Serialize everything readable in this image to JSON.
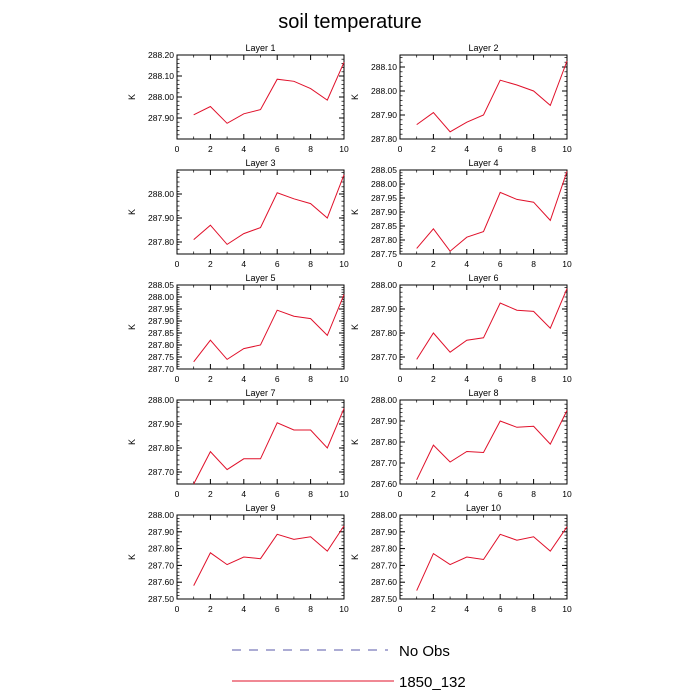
{
  "title": "soil temperature",
  "ylabel": "K",
  "xticks": [
    0,
    2,
    4,
    6,
    8,
    10
  ],
  "xlim": [
    0,
    10
  ],
  "legend": {
    "placement": "bottom-center",
    "items": [
      {
        "label": "No Obs",
        "style": "dashed",
        "color": "#5a5aa8"
      },
      {
        "label": "1850_132",
        "style": "solid",
        "color": "#e0102a"
      }
    ]
  },
  "line_color": "#e0102a",
  "chart_data": [
    {
      "type": "line",
      "title": "Layer 1",
      "xlabel": "",
      "ylabel": "K",
      "ylim": [
        287.8,
        288.2
      ],
      "yticks": [
        "287.90",
        "288.00",
        "288.10",
        "288.20"
      ],
      "series": [
        {
          "name": "1850_132",
          "x": [
            1,
            2,
            3,
            4,
            5,
            6,
            7,
            8,
            9,
            10
          ],
          "values": [
            287.915,
            287.955,
            287.875,
            287.92,
            287.94,
            288.085,
            288.075,
            288.04,
            287.985,
            288.165
          ]
        }
      ]
    },
    {
      "type": "line",
      "title": "Layer 2",
      "xlabel": "",
      "ylabel": "K",
      "ylim": [
        287.8,
        288.15
      ],
      "yticks": [
        "287.80",
        "287.90",
        "288.00",
        "288.10"
      ],
      "series": [
        {
          "name": "1850_132",
          "x": [
            1,
            2,
            3,
            4,
            5,
            6,
            7,
            8,
            9,
            10
          ],
          "values": [
            287.86,
            287.91,
            287.83,
            287.87,
            287.9,
            288.045,
            288.025,
            288.0,
            287.94,
            288.125
          ]
        }
      ]
    },
    {
      "type": "line",
      "title": "Layer 3",
      "xlabel": "",
      "ylabel": "K",
      "ylim": [
        287.75,
        288.1
      ],
      "yticks": [
        "287.80",
        "287.90",
        "288.00"
      ],
      "series": [
        {
          "name": "1850_132",
          "x": [
            1,
            2,
            3,
            4,
            5,
            6,
            7,
            8,
            9,
            10
          ],
          "values": [
            287.81,
            287.87,
            287.79,
            287.835,
            287.86,
            288.005,
            287.98,
            287.96,
            287.9,
            288.08
          ]
        }
      ]
    },
    {
      "type": "line",
      "title": "Layer 4",
      "xlabel": "",
      "ylabel": "K",
      "ylim": [
        287.75,
        288.05
      ],
      "yticks": [
        "287.75",
        "287.80",
        "287.85",
        "287.90",
        "287.95",
        "288.00",
        "288.05"
      ],
      "series": [
        {
          "name": "1850_132",
          "x": [
            1,
            2,
            3,
            4,
            5,
            6,
            7,
            8,
            9,
            10
          ],
          "values": [
            287.77,
            287.84,
            287.76,
            287.81,
            287.83,
            287.97,
            287.945,
            287.935,
            287.87,
            288.045
          ]
        }
      ]
    },
    {
      "type": "line",
      "title": "Layer 5",
      "xlabel": "",
      "ylabel": "K",
      "ylim": [
        287.7,
        288.05
      ],
      "yticks": [
        "287.70",
        "287.75",
        "287.80",
        "287.85",
        "287.90",
        "287.95",
        "288.00",
        "288.05"
      ],
      "series": [
        {
          "name": "1850_132",
          "x": [
            1,
            2,
            3,
            4,
            5,
            6,
            7,
            8,
            9,
            10
          ],
          "values": [
            287.73,
            287.82,
            287.74,
            287.785,
            287.8,
            287.945,
            287.92,
            287.91,
            287.84,
            288.01
          ]
        }
      ]
    },
    {
      "type": "line",
      "title": "Layer 6",
      "xlabel": "",
      "ylabel": "K",
      "ylim": [
        287.65,
        288.0
      ],
      "yticks": [
        "287.70",
        "287.80",
        "287.90",
        "288.00"
      ],
      "series": [
        {
          "name": "1850_132",
          "x": [
            1,
            2,
            3,
            4,
            5,
            6,
            7,
            8,
            9,
            10
          ],
          "values": [
            287.69,
            287.8,
            287.72,
            287.77,
            287.78,
            287.925,
            287.895,
            287.89,
            287.82,
            287.985
          ]
        }
      ]
    },
    {
      "type": "line",
      "title": "Layer 7",
      "xlabel": "",
      "ylabel": "K",
      "ylim": [
        287.65,
        288.0
      ],
      "yticks": [
        "287.70",
        "287.80",
        "287.90",
        "288.00"
      ],
      "series": [
        {
          "name": "1850_132",
          "x": [
            1,
            2,
            3,
            4,
            5,
            6,
            7,
            8,
            9,
            10
          ],
          "values": [
            287.65,
            287.785,
            287.71,
            287.755,
            287.755,
            287.905,
            287.875,
            287.875,
            287.8,
            287.965
          ]
        }
      ]
    },
    {
      "type": "line",
      "title": "Layer 8",
      "xlabel": "",
      "ylabel": "K",
      "ylim": [
        287.6,
        288.0
      ],
      "yticks": [
        "287.60",
        "287.70",
        "287.80",
        "287.90",
        "288.00"
      ],
      "series": [
        {
          "name": "1850_132",
          "x": [
            1,
            2,
            3,
            4,
            5,
            6,
            7,
            8,
            9,
            10
          ],
          "values": [
            287.62,
            287.785,
            287.705,
            287.755,
            287.75,
            287.9,
            287.87,
            287.875,
            287.79,
            287.95
          ]
        }
      ]
    },
    {
      "type": "line",
      "title": "Layer 9",
      "xlabel": "",
      "ylabel": "K",
      "ylim": [
        287.5,
        288.0
      ],
      "yticks": [
        "287.50",
        "287.60",
        "287.70",
        "287.80",
        "287.90",
        "288.00"
      ],
      "series": [
        {
          "name": "1850_132",
          "x": [
            1,
            2,
            3,
            4,
            5,
            6,
            7,
            8,
            9,
            10
          ],
          "values": [
            287.58,
            287.775,
            287.705,
            287.75,
            287.74,
            287.885,
            287.855,
            287.87,
            287.785,
            287.935
          ]
        }
      ]
    },
    {
      "type": "line",
      "title": "Layer 10",
      "xlabel": "",
      "ylabel": "K",
      "ylim": [
        287.5,
        288.0
      ],
      "yticks": [
        "287.50",
        "287.60",
        "287.70",
        "287.80",
        "287.90",
        "288.00"
      ],
      "series": [
        {
          "name": "1850_132",
          "x": [
            1,
            2,
            3,
            4,
            5,
            6,
            7,
            8,
            9,
            10
          ],
          "values": [
            287.55,
            287.77,
            287.705,
            287.75,
            287.735,
            287.885,
            287.85,
            287.87,
            287.785,
            287.93
          ]
        }
      ]
    }
  ]
}
